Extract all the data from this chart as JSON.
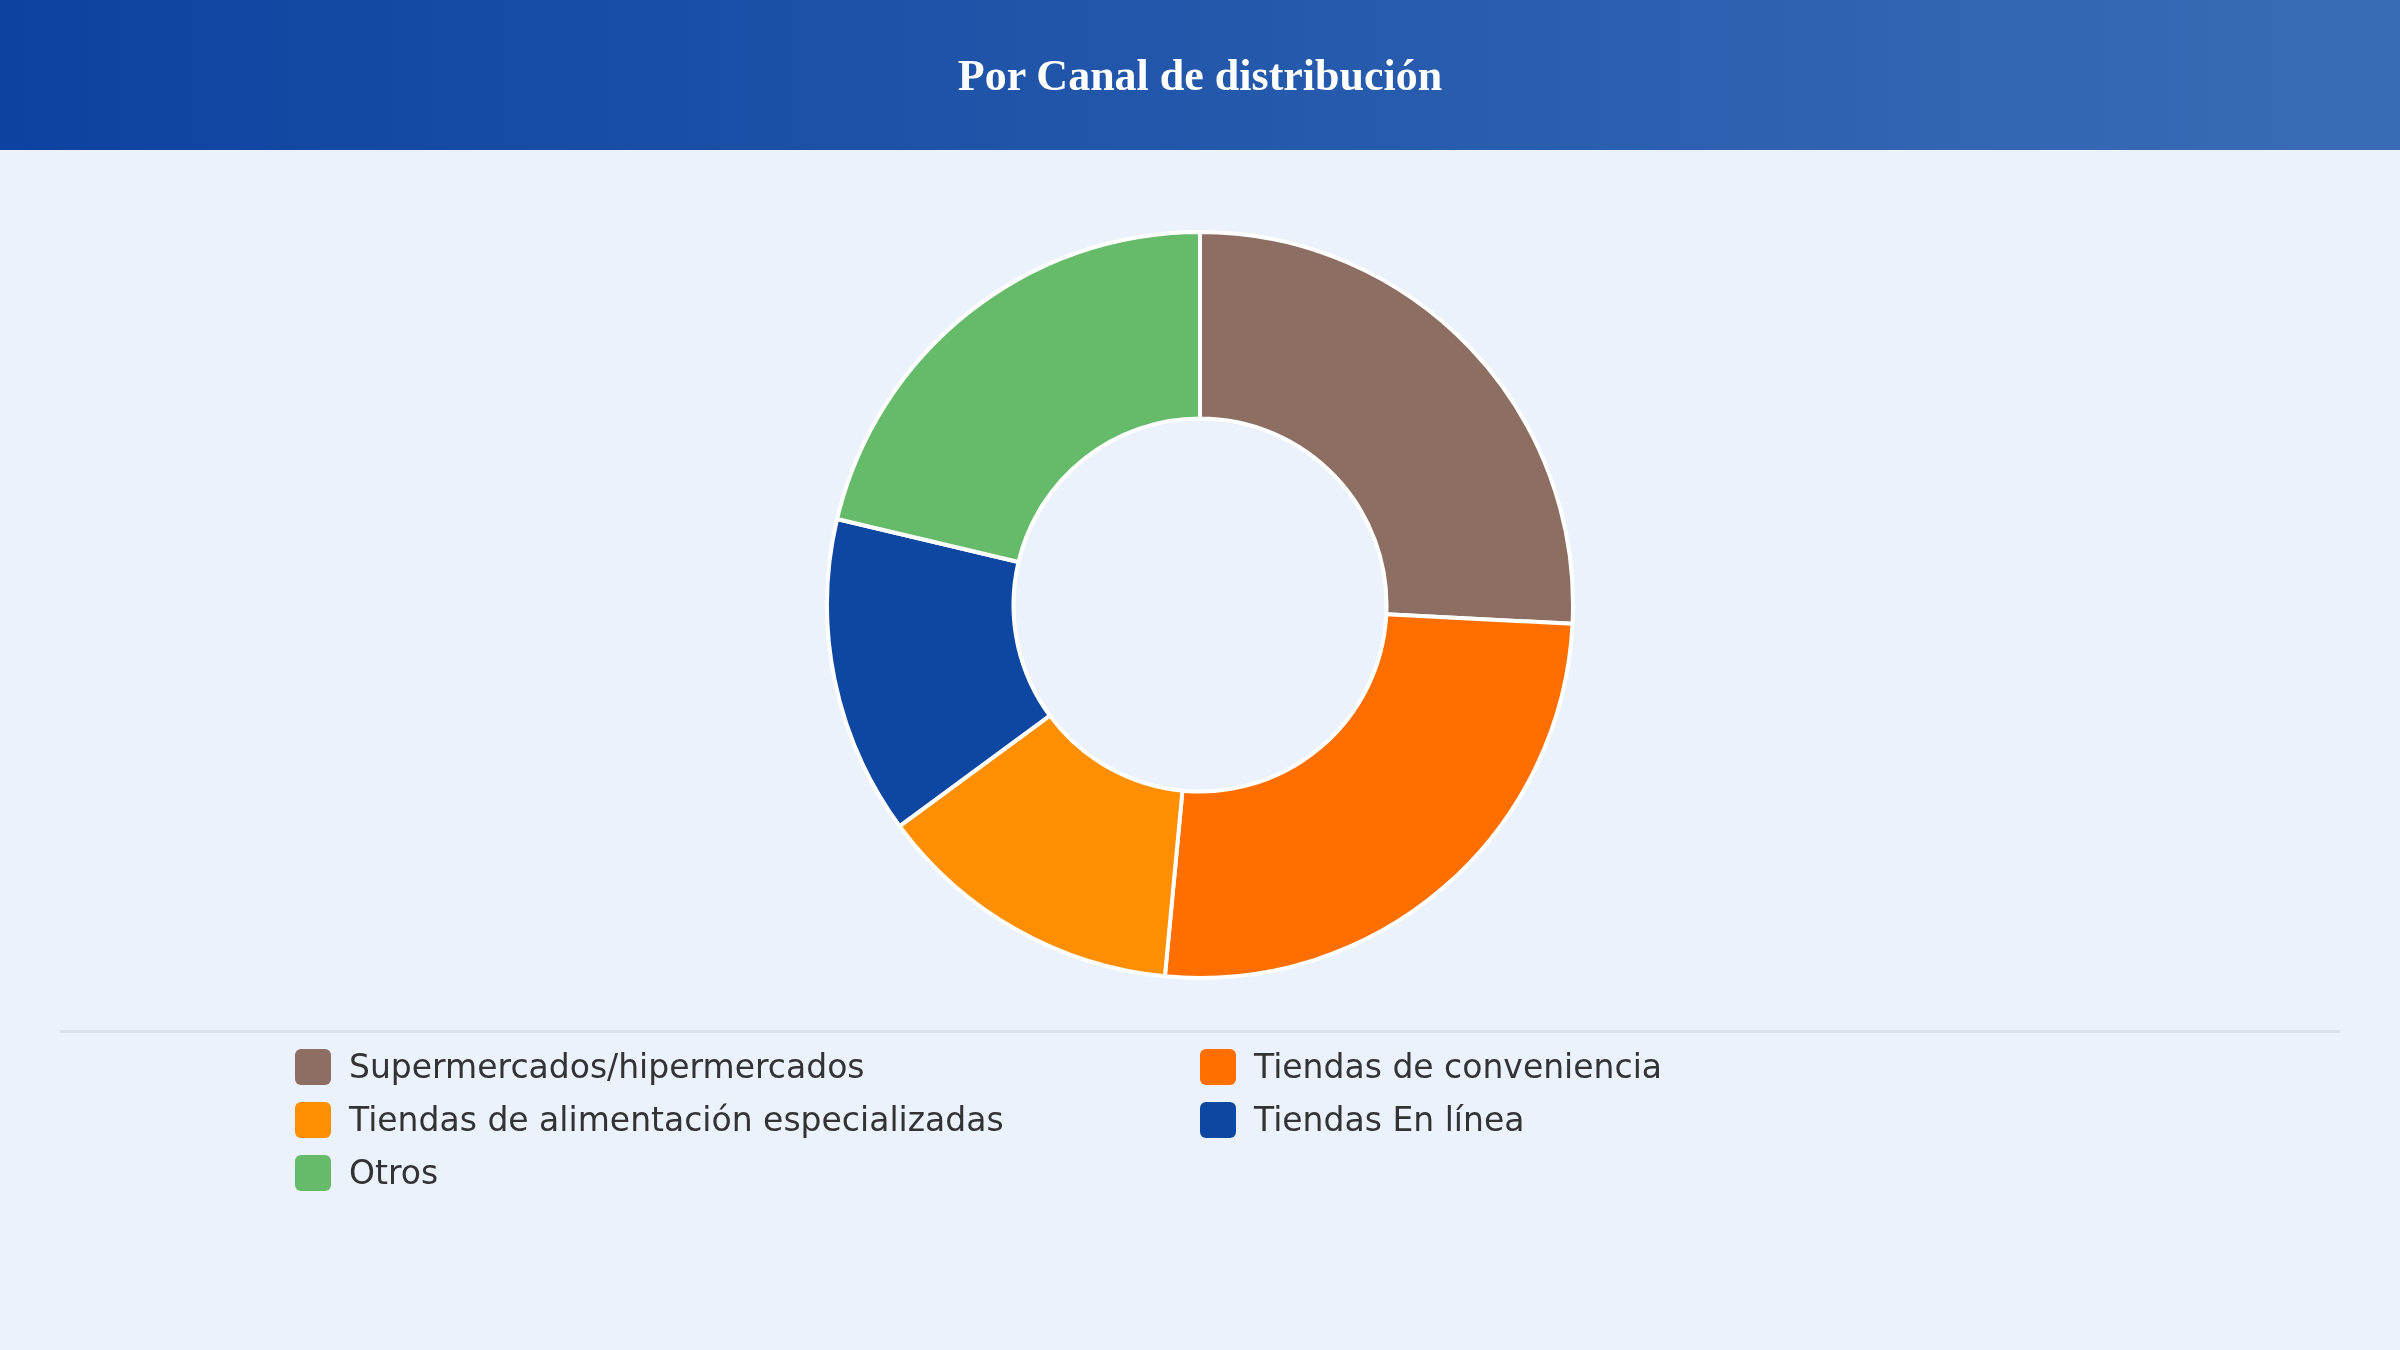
{
  "chart_data": {
    "type": "donut",
    "title": "Por Canal de distribución",
    "categories": [
      "Supermercados/hipermercados",
      "Tiendas de conveniencia",
      "Tiendas de alimentación especializadas",
      "Tiendas En línea",
      "Otros"
    ],
    "values": [
      25.8,
      25.7,
      13.4,
      13.8,
      21.3
    ],
    "colors": [
      "#8d6e63",
      "#ff6f00",
      "#ff8f00",
      "#0d47a1",
      "#66bb6a"
    ],
    "legend": "bottom"
  }
}
